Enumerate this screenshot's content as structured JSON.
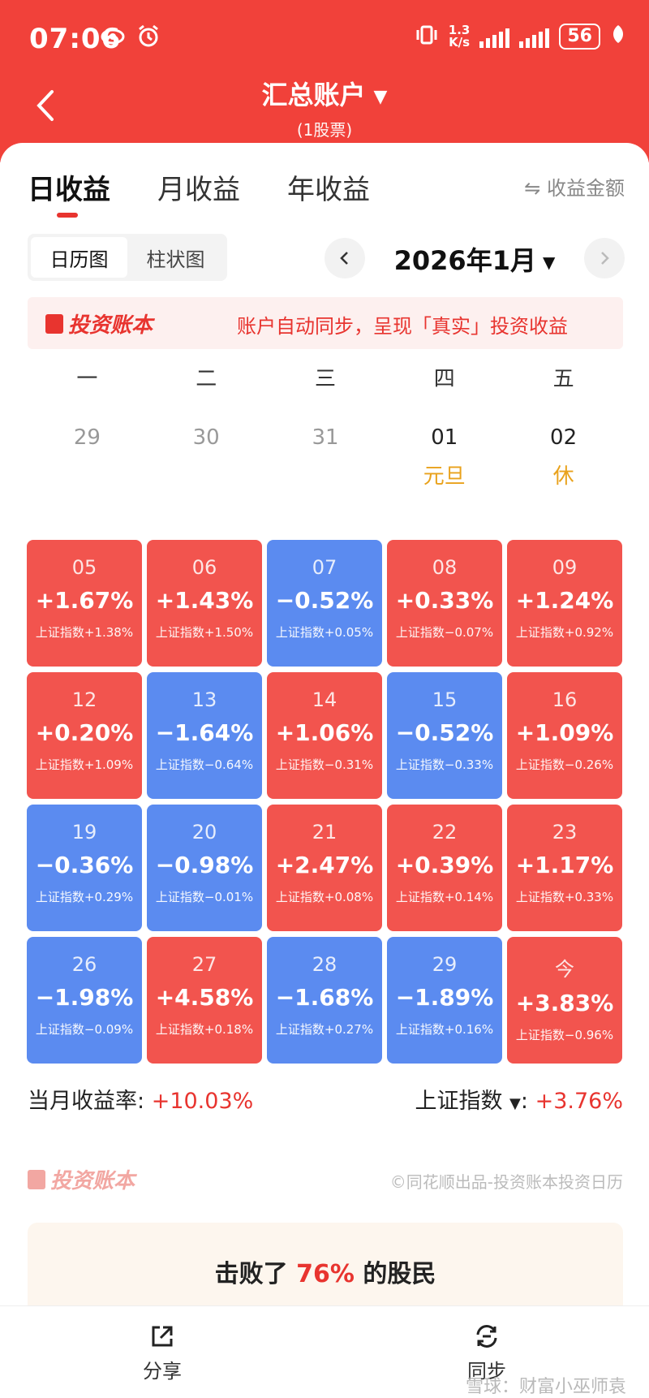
{
  "status_bar": {
    "time": "07:06",
    "net_speed_value": "1.3",
    "net_speed_unit": "K/s",
    "battery": "56"
  },
  "header": {
    "title": "汇总账户",
    "subtitle": "(1股票)"
  },
  "tabs": [
    "日收益",
    "月收益",
    "年收益"
  ],
  "toggle_amount": "⇋ 收益金额",
  "view_switch": {
    "calendar": "日历图",
    "bar": "柱状图"
  },
  "month_label": "2026年1月",
  "banner": {
    "logo_text": "投资账本",
    "text": "账户自动同步，呈现「真实」投资收益"
  },
  "weekdays": [
    "一",
    "二",
    "三",
    "四",
    "五"
  ],
  "first_row": [
    {
      "day": "29",
      "holiday": ""
    },
    {
      "day": "30",
      "holiday": ""
    },
    {
      "day": "31",
      "holiday": ""
    },
    {
      "day": "01",
      "holiday": "元旦"
    },
    {
      "day": "02",
      "holiday": "休"
    }
  ],
  "days": [
    {
      "day": "05",
      "pct": "+1.67%",
      "index": "上证指数+1.38%",
      "trend": "up"
    },
    {
      "day": "06",
      "pct": "+1.43%",
      "index": "上证指数+1.50%",
      "trend": "up"
    },
    {
      "day": "07",
      "pct": "−0.52%",
      "index": "上证指数+0.05%",
      "trend": "down"
    },
    {
      "day": "08",
      "pct": "+0.33%",
      "index": "上证指数−0.07%",
      "trend": "up"
    },
    {
      "day": "09",
      "pct": "+1.24%",
      "index": "上证指数+0.92%",
      "trend": "up"
    },
    {
      "day": "12",
      "pct": "+0.20%",
      "index": "上证指数+1.09%",
      "trend": "up"
    },
    {
      "day": "13",
      "pct": "−1.64%",
      "index": "上证指数−0.64%",
      "trend": "down"
    },
    {
      "day": "14",
      "pct": "+1.06%",
      "index": "上证指数−0.31%",
      "trend": "up"
    },
    {
      "day": "15",
      "pct": "−0.52%",
      "index": "上证指数−0.33%",
      "trend": "down"
    },
    {
      "day": "16",
      "pct": "+1.09%",
      "index": "上证指数−0.26%",
      "trend": "up"
    },
    {
      "day": "19",
      "pct": "−0.36%",
      "index": "上证指数+0.29%",
      "trend": "down"
    },
    {
      "day": "20",
      "pct": "−0.98%",
      "index": "上证指数−0.01%",
      "trend": "down"
    },
    {
      "day": "21",
      "pct": "+2.47%",
      "index": "上证指数+0.08%",
      "trend": "up"
    },
    {
      "day": "22",
      "pct": "+0.39%",
      "index": "上证指数+0.14%",
      "trend": "up"
    },
    {
      "day": "23",
      "pct": "+1.17%",
      "index": "上证指数+0.33%",
      "trend": "up"
    },
    {
      "day": "26",
      "pct": "−1.98%",
      "index": "上证指数−0.09%",
      "trend": "down"
    },
    {
      "day": "27",
      "pct": "+4.58%",
      "index": "上证指数+0.18%",
      "trend": "up"
    },
    {
      "day": "28",
      "pct": "−1.68%",
      "index": "上证指数+0.27%",
      "trend": "down"
    },
    {
      "day": "29",
      "pct": "−1.89%",
      "index": "上证指数+0.16%",
      "trend": "down"
    },
    {
      "day": "今",
      "pct": "+3.83%",
      "index": "上证指数−0.96%",
      "trend": "up"
    }
  ],
  "summary": {
    "monthly_label": "当月收益率:",
    "monthly_value": "+10.03%",
    "index_label": "上证指数",
    "index_colon": ":",
    "index_value": "+3.76%"
  },
  "footer": {
    "logo_text": "投资账本",
    "copyright": "©同花顺出品-投资账本投资日历"
  },
  "beat": {
    "prefix": "击败了",
    "value": "76%",
    "suffix": "的股民"
  },
  "bottom_bar": {
    "share": "分享",
    "sync": "同步"
  },
  "watermark": "雪球：财富小巫师袁",
  "colors": {
    "header": "#f1413a",
    "up": "#f2544e",
    "down": "#5b8bf0",
    "holiday": "#e9a21c"
  }
}
